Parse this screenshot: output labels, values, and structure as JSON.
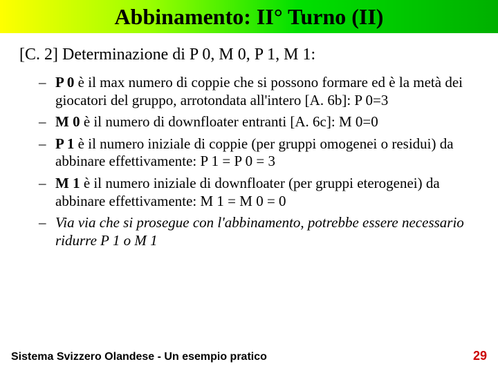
{
  "title": "Abbinamento: II° Turno (II)",
  "section": {
    "bracket": "[C. 2]",
    "heading_rest": " Determinazione di P 0, M 0, P 1, M 1:"
  },
  "bullets": [
    {
      "lead": "P 0",
      "text": " è il max numero di coppie che si possono formare ed è la metà dei giocatori del gruppo, arrotondata all'intero [A. 6b]: P 0=3",
      "italic": false
    },
    {
      "lead": "M 0",
      "text": " è il numero di downfloater entranti [A. 6c]: M 0=0",
      "italic": false
    },
    {
      "lead": "P 1",
      "text": " è il numero iniziale di coppie (per gruppi omogenei o residui) da abbinare effettivamente: P 1 = P 0 = 3",
      "italic": false
    },
    {
      "lead": "M 1",
      "text": " è il numero iniziale di downfloater (per gruppi eterogenei) da abbinare effettivamente: M 1 = M 0 = 0",
      "italic": false
    },
    {
      "lead": "",
      "text": "Via via che si prosegue con l'abbinamento, potrebbe essere necessario ridurre P 1 o M 1",
      "italic": true
    }
  ],
  "footer": {
    "left": "Sistema Svizzero Olandese - Un esempio pratico",
    "page": "29"
  },
  "colors": {
    "title_gradient_start": "#ffff00",
    "title_gradient_end": "#00b000",
    "page_number": "#cc0000",
    "text": "#000000",
    "background": "#ffffff"
  },
  "typography": {
    "title_fontsize": 32,
    "heading_fontsize": 24,
    "body_fontsize": 21,
    "footer_fontsize": 16,
    "title_font": "Times New Roman",
    "footer_font": "Arial"
  }
}
